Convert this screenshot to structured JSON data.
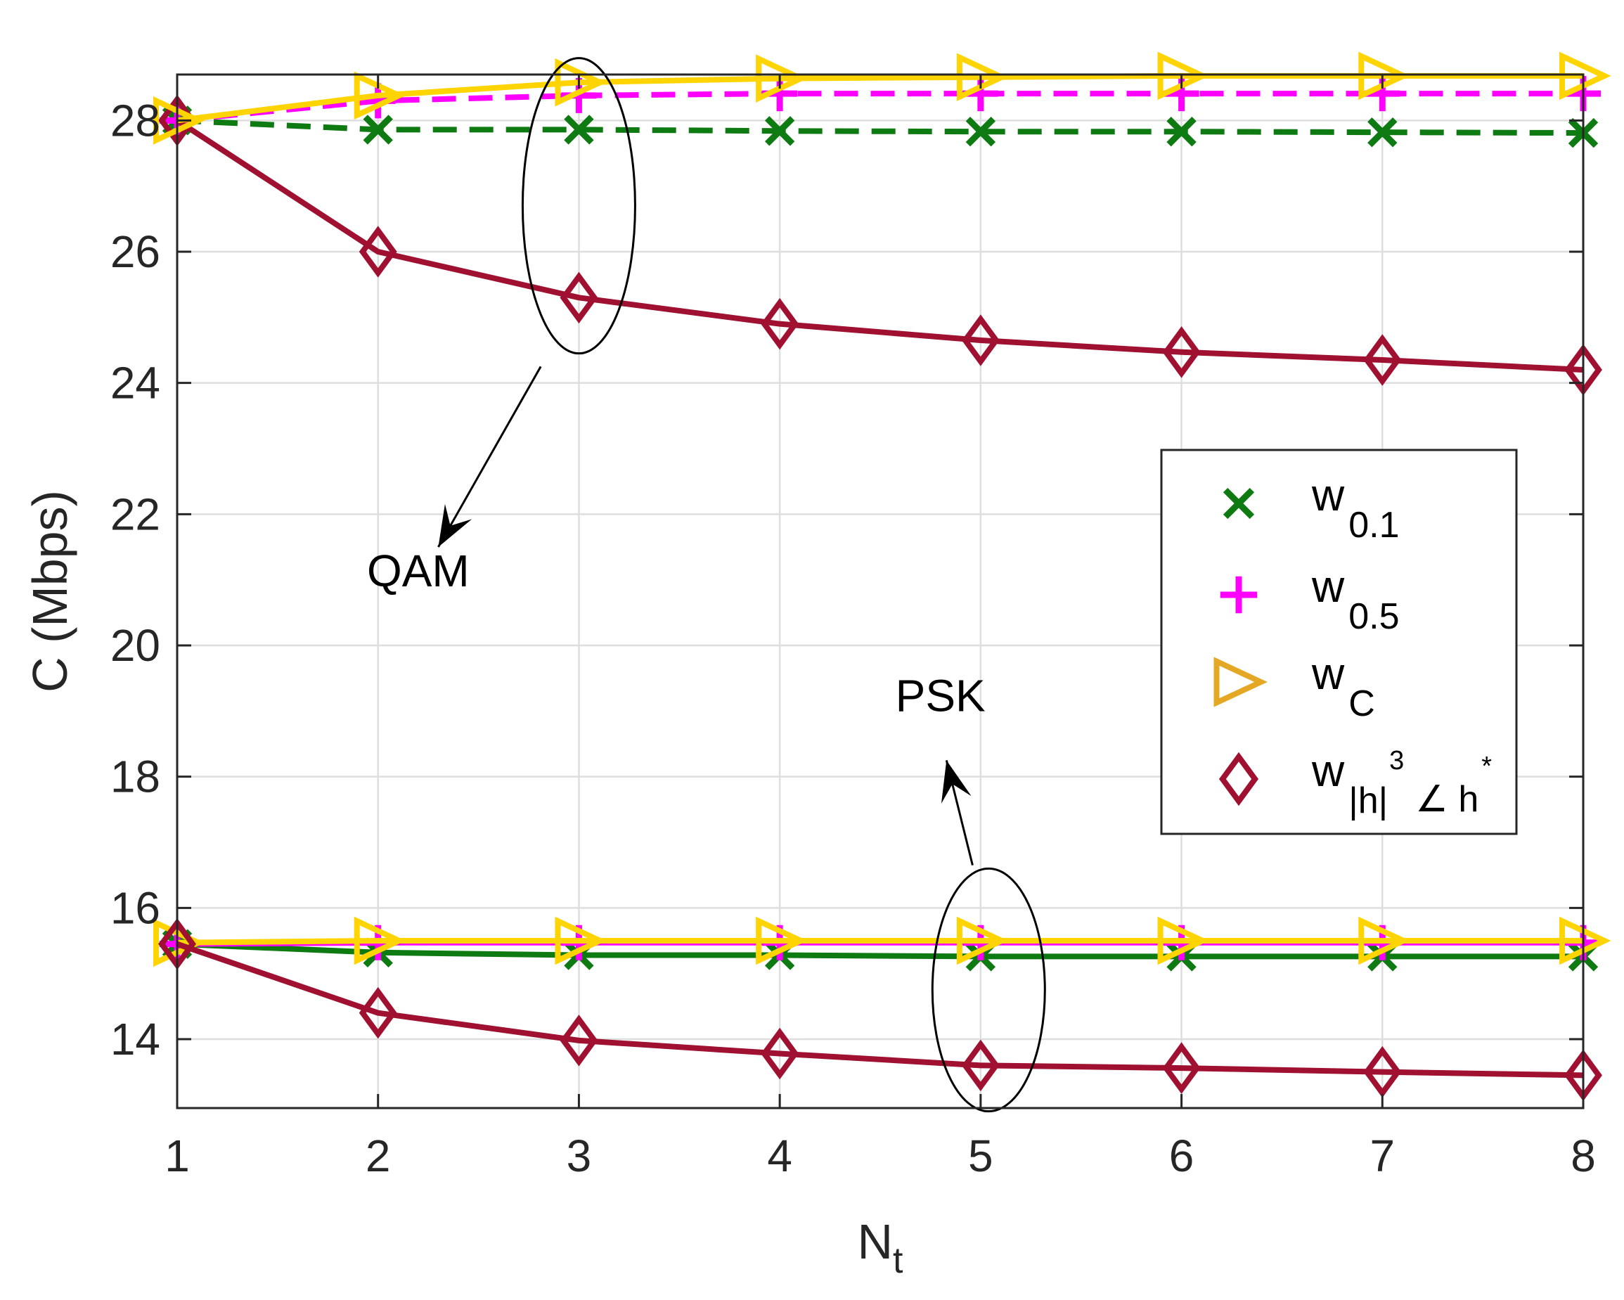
{
  "chart_data": {
    "type": "line",
    "xlabel": "N",
    "xlabel_sub": "t",
    "ylabel": "C (Mbps)",
    "xlim": [
      1,
      8
    ],
    "ylim": [
      12.95,
      28.7
    ],
    "grid": true,
    "x": [
      1,
      2,
      3,
      4,
      5,
      6,
      7,
      8
    ],
    "xticks": [
      "1",
      "2",
      "3",
      "4",
      "5",
      "6",
      "7",
      "8"
    ],
    "yticks": [
      14,
      16,
      18,
      20,
      22,
      24,
      26,
      28
    ],
    "ytick_labels": [
      "14",
      "16",
      "18",
      "20",
      "22",
      "24",
      "26",
      "28"
    ],
    "series": [
      {
        "name": "w0.1 QAM",
        "legend": "w0.1",
        "group": "QAM",
        "color": "#0E7A12",
        "marker": "x",
        "dash": true,
        "values": [
          28.0,
          27.86,
          27.86,
          27.84,
          27.83,
          27.83,
          27.82,
          27.81
        ]
      },
      {
        "name": "w0.5 QAM",
        "legend": "w0.5",
        "group": "QAM",
        "color": "#FF00FF",
        "marker": "+",
        "dash": true,
        "values": [
          28.0,
          28.3,
          28.38,
          28.41,
          28.41,
          28.41,
          28.41,
          28.41
        ]
      },
      {
        "name": "wC QAM",
        "legend": "wC",
        "group": "QAM",
        "color": "#FFD400",
        "marker": "triangle-right",
        "dash": false,
        "values": [
          28.0,
          28.38,
          28.58,
          28.64,
          28.66,
          28.68,
          28.68,
          28.68
        ]
      },
      {
        "name": "w|h|^3∠h* QAM",
        "legend": "w|h|3∠h*",
        "group": "QAM",
        "color": "#A01030",
        "marker": "diamond",
        "dash": false,
        "values": [
          28.0,
          26.0,
          25.3,
          24.9,
          24.65,
          24.47,
          24.35,
          24.2
        ]
      },
      {
        "name": "w0.1 PSK",
        "legend": "w0.1",
        "group": "PSK",
        "color": "#0E7A12",
        "marker": "x",
        "dash": false,
        "values": [
          15.45,
          15.32,
          15.28,
          15.28,
          15.26,
          15.26,
          15.26,
          15.26
        ]
      },
      {
        "name": "w0.5 PSK",
        "legend": "w0.5",
        "group": "PSK",
        "color": "#FF00FF",
        "marker": "+",
        "dash": false,
        "values": [
          15.45,
          15.47,
          15.47,
          15.47,
          15.47,
          15.47,
          15.47,
          15.47
        ]
      },
      {
        "name": "wC PSK",
        "legend": "wC",
        "group": "PSK",
        "color": "#FFD400",
        "marker": "triangle-right",
        "dash": false,
        "values": [
          15.47,
          15.5,
          15.5,
          15.5,
          15.5,
          15.5,
          15.5,
          15.5
        ]
      },
      {
        "name": "w|h|^3∠h* PSK",
        "legend": "w|h|3∠h*",
        "group": "PSK",
        "color": "#A01030",
        "marker": "diamond",
        "dash": false,
        "values": [
          15.45,
          14.4,
          13.98,
          13.78,
          13.6,
          13.56,
          13.5,
          13.45
        ]
      }
    ],
    "annotations": [
      {
        "text": "QAM",
        "x": 2.2,
        "y": 20.9,
        "ellipse_center": [
          3.0,
          26.7
        ],
        "ellipse_semi_axes_data": [
          0.28,
          2.25
        ],
        "arrow_from": [
          2.81,
          24.25
        ],
        "arrow_to": [
          2.3,
          21.5
        ]
      },
      {
        "text": "PSK",
        "x": 4.8,
        "y": 19.0,
        "ellipse_center": [
          5.04,
          14.75
        ],
        "ellipse_semi_axes_data": [
          0.28,
          1.85
        ],
        "arrow_from": [
          4.96,
          16.65
        ],
        "arrow_to": [
          4.83,
          18.25
        ]
      }
    ],
    "legend": {
      "location": "center-right",
      "entries": [
        {
          "marker": "x",
          "color": "#0E7A12",
          "base": "w",
          "sub": "0.1"
        },
        {
          "marker": "+",
          "color": "#FF00FF",
          "base": "w",
          "sub": "0.5"
        },
        {
          "marker": "triangle-right",
          "color": "#E5A825",
          "base": "w",
          "sub": "C"
        },
        {
          "marker": "diamond",
          "color": "#A01030",
          "base": "w",
          "sub": "|h|",
          "sup": "3",
          "tail": "∠ h",
          "tail_sup": "*"
        }
      ]
    }
  }
}
